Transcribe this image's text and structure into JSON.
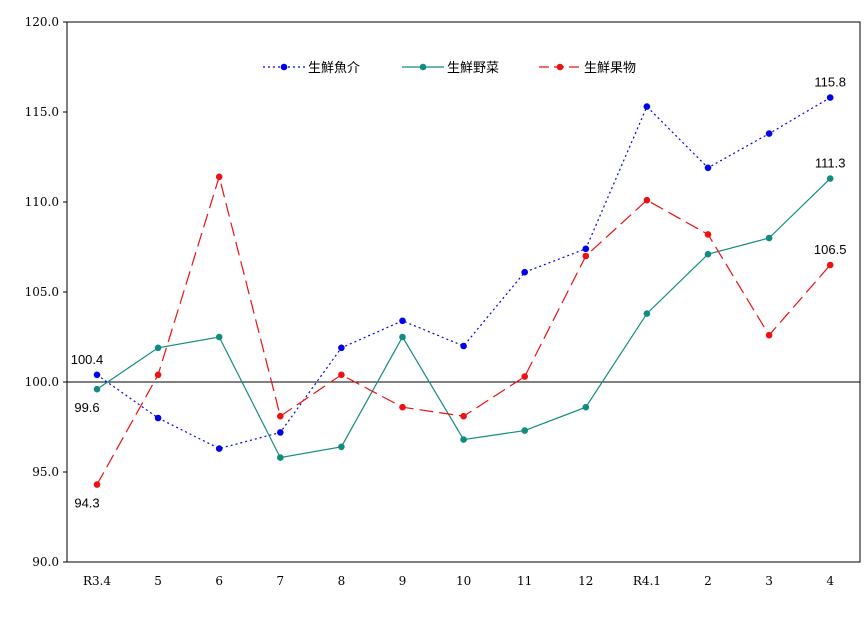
{
  "chart_data": {
    "type": "line",
    "title": "",
    "xlabel": "",
    "ylabel": "",
    "ylim": [
      90,
      120
    ],
    "yticks": [
      "90.0",
      "95.0",
      "100.0",
      "105.0",
      "110.0",
      "115.0",
      "120.0"
    ],
    "ytick_values": [
      90,
      95,
      100,
      105,
      110,
      115,
      120
    ],
    "categories": [
      "R3.4",
      "5",
      "6",
      "7",
      "8",
      "9",
      "10",
      "11",
      "12",
      "R4.1",
      "2",
      "3",
      "4"
    ],
    "reference_line": 100,
    "grid": false,
    "legend_position": "top",
    "series": [
      {
        "name": "生鮮魚介",
        "color": "#0000ee",
        "dash": "dotted",
        "values": [
          100.4,
          98.0,
          96.3,
          97.2,
          101.9,
          103.4,
          102.0,
          106.1,
          107.4,
          115.3,
          111.9,
          113.8,
          115.8
        ]
      },
      {
        "name": "生鮮野菜",
        "color": "#138c80",
        "dash": "solid",
        "values": [
          99.6,
          101.9,
          102.5,
          95.8,
          96.4,
          102.5,
          96.8,
          97.3,
          98.6,
          103.8,
          107.1,
          108.0,
          111.3
        ]
      },
      {
        "name": "生鮮果物",
        "color": "#ee1111",
        "dash": "dashed",
        "values": [
          94.3,
          100.4,
          111.4,
          98.1,
          100.4,
          98.6,
          98.1,
          100.3,
          107.0,
          110.1,
          108.2,
          102.6,
          106.5
        ]
      }
    ],
    "data_labels": [
      {
        "series": 0,
        "index": 0,
        "text": "100.4",
        "pos": "above"
      },
      {
        "series": 1,
        "index": 0,
        "text": "99.6",
        "pos": "below"
      },
      {
        "series": 2,
        "index": 0,
        "text": "94.3",
        "pos": "below"
      },
      {
        "series": 0,
        "index": 12,
        "text": "115.8",
        "pos": "above"
      },
      {
        "series": 1,
        "index": 12,
        "text": "111.3",
        "pos": "above"
      },
      {
        "series": 2,
        "index": 12,
        "text": "106.5",
        "pos": "above"
      }
    ]
  }
}
